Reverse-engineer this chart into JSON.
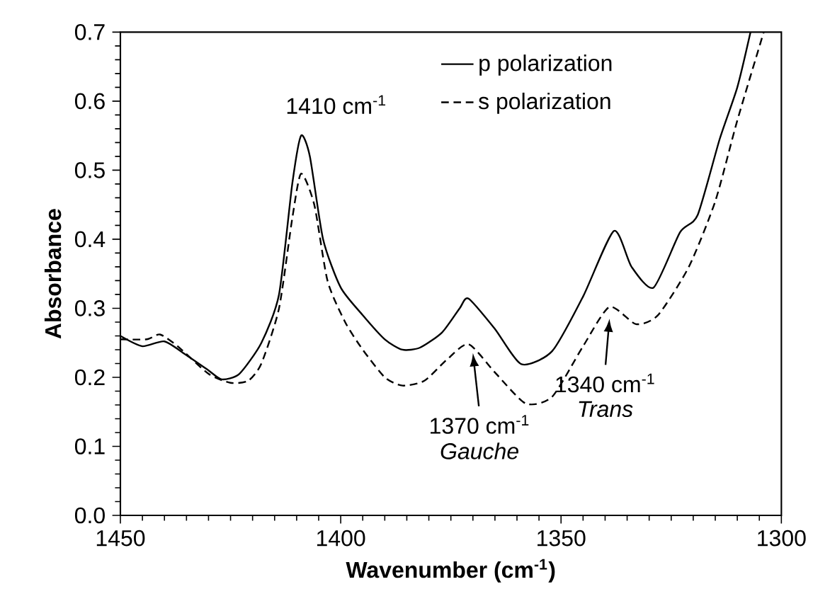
{
  "chart_data": {
    "type": "line",
    "xlabel": "Wavenumber (cm$^{-1}$)",
    "ylabel": "Absorbance",
    "xlim": [
      1450,
      1300
    ],
    "xticks": [
      1450,
      1400,
      1350,
      1300
    ],
    "ylim": [
      0,
      0.7
    ],
    "yticks": [
      {
        "value": 0,
        "label": "0.0"
      },
      {
        "value": 0.1,
        "label": "0.1"
      },
      {
        "value": 0.2,
        "label": "0.2"
      },
      {
        "value": 0.3,
        "label": "0.3"
      },
      {
        "value": 0.4,
        "label": "0.4"
      },
      {
        "value": 0.5,
        "label": "0.5"
      },
      {
        "value": 0.6,
        "label": "0.6"
      },
      {
        "value": 0.7,
        "label": "0.7"
      }
    ],
    "legend": "top right",
    "grid": false,
    "marker": "none",
    "series": [
      {
        "name": "p polarization",
        "color": "#000000",
        "line_style": "solid",
        "x": [
          1450,
          1445,
          1440,
          1435,
          1430,
          1427,
          1423,
          1418,
          1414,
          1411,
          1409,
          1407,
          1404,
          1400,
          1395,
          1390,
          1386,
          1382,
          1377,
          1373,
          1371,
          1365,
          1359,
          1352,
          1345,
          1338,
          1334,
          1329,
          1323,
          1319,
          1314,
          1310,
          1307
        ],
        "values": [
          0.26,
          0.245,
          0.252,
          0.232,
          0.21,
          0.197,
          0.205,
          0.25,
          0.32,
          0.48,
          0.55,
          0.52,
          0.4,
          0.33,
          0.29,
          0.255,
          0.24,
          0.243,
          0.265,
          0.3,
          0.314,
          0.27,
          0.219,
          0.238,
          0.317,
          0.412,
          0.36,
          0.33,
          0.41,
          0.435,
          0.545,
          0.62,
          0.7
        ]
      },
      {
        "name": "s polarization",
        "color": "#000000",
        "line_style": "dashed",
        "x": [
          1450,
          1444,
          1441,
          1437,
          1430,
          1425,
          1421,
          1418,
          1414,
          1411,
          1409,
          1406,
          1403,
          1399,
          1395,
          1390,
          1386,
          1381,
          1376,
          1371,
          1365,
          1358,
          1352,
          1345,
          1339,
          1333,
          1328,
          1321,
          1315,
          1310,
          1304
        ],
        "values": [
          0.255,
          0.255,
          0.262,
          0.245,
          0.205,
          0.192,
          0.195,
          0.22,
          0.3,
          0.43,
          0.495,
          0.45,
          0.34,
          0.28,
          0.24,
          0.2,
          0.188,
          0.195,
          0.225,
          0.248,
          0.207,
          0.162,
          0.172,
          0.245,
          0.302,
          0.277,
          0.29,
          0.36,
          0.455,
          0.572,
          0.7
        ]
      }
    ],
    "annotations": [
      {
        "text": "1410 cm$^{-1}$",
        "x": 1410,
        "y": 0.55
      },
      {
        "text": "1370 cm$^{-1}$",
        "x": 1370,
        "y": 0.24
      },
      "Gauche",
      {
        "text": "1340 cm$^{-1}$",
        "x": 1339,
        "y": 0.29
      },
      "Trans"
    ]
  }
}
